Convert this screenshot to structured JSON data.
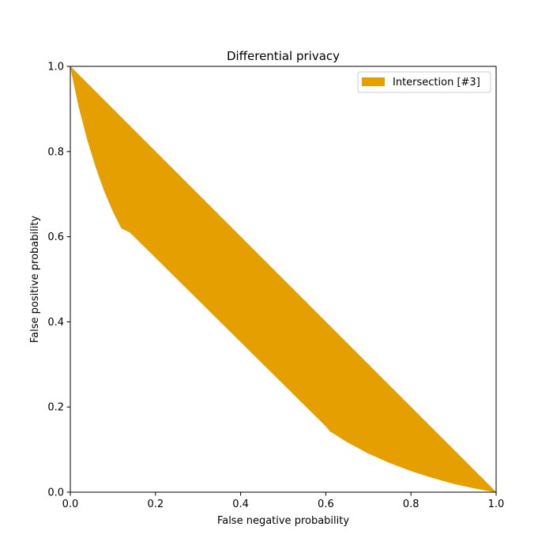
{
  "chart_data": {
    "type": "area",
    "title": "Differential privacy",
    "xlabel": "False negative probability",
    "ylabel": "False positive probability",
    "xlim": [
      0,
      1
    ],
    "ylim": [
      0,
      1
    ],
    "xticks": [
      "0.0",
      "0.2",
      "0.4",
      "0.6",
      "0.8",
      "1.0"
    ],
    "yticks": [
      "0.0",
      "0.2",
      "0.4",
      "0.6",
      "0.8",
      "1.0"
    ],
    "grid": false,
    "legend_position": "top-right",
    "series": [
      {
        "name": "Intersection [#3]",
        "color": "#e69f00",
        "upper_boundary": {
          "x": [
            0,
            1
          ],
          "y": [
            1,
            0
          ]
        },
        "lower_boundary": {
          "x": [
            0,
            0.02,
            0.04,
            0.06,
            0.08,
            0.1,
            0.12,
            0.14,
            0.2,
            0.3,
            0.4,
            0.5,
            0.6,
            0.61,
            0.65,
            0.7,
            0.75,
            0.8,
            0.85,
            0.9,
            0.95,
            1.0
          ],
          "y": [
            1,
            0.905,
            0.828,
            0.763,
            0.707,
            0.66,
            0.62,
            0.61,
            0.551,
            0.452,
            0.353,
            0.254,
            0.155,
            0.143,
            0.118,
            0.091,
            0.069,
            0.05,
            0.034,
            0.02,
            0.009,
            0
          ]
        }
      }
    ]
  }
}
